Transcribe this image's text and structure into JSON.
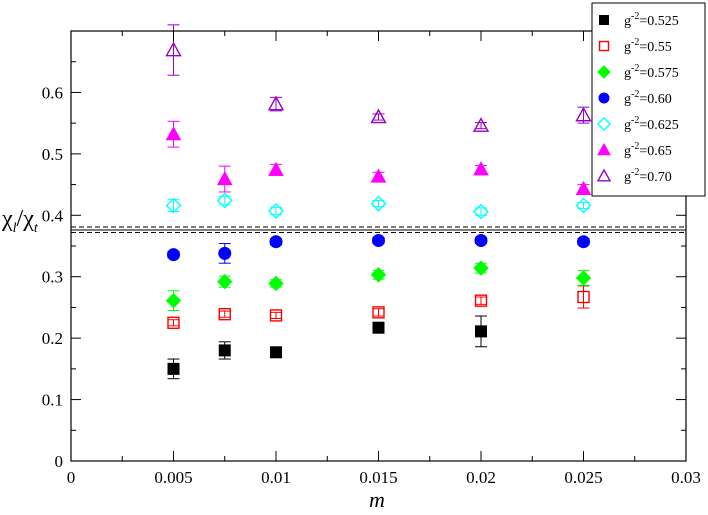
{
  "chart_data": {
    "type": "scatter",
    "xlabel": "m",
    "ylabel": {
      "main": "χ",
      "sub1": "l",
      "sep": "/",
      "main2": "χ",
      "sub2": "t"
    },
    "xlim": [
      0,
      0.03
    ],
    "ylim": [
      0,
      0.7
    ],
    "xticks": [
      0,
      0.005,
      0.01,
      0.015,
      0.02,
      0.025,
      0.03
    ],
    "xtick_labels": [
      "0",
      "0.005",
      "0.01",
      "0.015",
      "0.02",
      "0.025",
      "0.03"
    ],
    "yticks": [
      0,
      0.1,
      0.2,
      0.3,
      0.4,
      0.5,
      0.6
    ],
    "ytick_labels": [
      "0",
      "0.1",
      "0.2",
      "0.3",
      "0.4",
      "0.5",
      "0.6"
    ],
    "grid": false,
    "legend_position": "top-right",
    "reference_band": {
      "center": 0.376,
      "low": 0.372,
      "high": 0.381,
      "color": "#000000"
    },
    "series": [
      {
        "name": "g⁻²=0.525",
        "legend_prefix": "g",
        "legend_sup": "-2",
        "legend_value": "=0.525",
        "marker": "square",
        "filled": true,
        "color": "#000000",
        "points": [
          [
            0.005,
            0.15,
            0.016
          ],
          [
            0.0075,
            0.18,
            0.014
          ],
          [
            0.01,
            0.177,
            0.005
          ],
          [
            0.015,
            0.217,
            0.008
          ],
          [
            0.02,
            0.211,
            0.025
          ],
          [
            0.025,
            null,
            null
          ]
        ]
      },
      {
        "name": "g⁻²=0.55",
        "legend_prefix": "g",
        "legend_sup": "-2",
        "legend_value": "=0.55",
        "marker": "square",
        "filled": false,
        "color": "#ff0000",
        "points": [
          [
            0.005,
            0.225,
            0.005
          ],
          [
            0.0075,
            0.239,
            0.005
          ],
          [
            0.01,
            0.237,
            0.005
          ],
          [
            0.015,
            0.242,
            0.006
          ],
          [
            0.02,
            0.261,
            0.006
          ],
          [
            0.025,
            0.267,
            0.018
          ]
        ]
      },
      {
        "name": "g⁻²=0.575",
        "legend_prefix": "g",
        "legend_sup": "-2",
        "legend_value": "=0.575",
        "marker": "diamond",
        "filled": true,
        "color": "#00ff00",
        "points": [
          [
            0.005,
            0.261,
            0.016
          ],
          [
            0.0075,
            0.292,
            0.009
          ],
          [
            0.01,
            0.289,
            0.006
          ],
          [
            0.015,
            0.303,
            0.007
          ],
          [
            0.02,
            0.314,
            0.008
          ],
          [
            0.025,
            0.298,
            0.012
          ]
        ]
      },
      {
        "name": "g⁻²=0.60",
        "legend_prefix": "g",
        "legend_sup": "-2",
        "legend_value": "=0.60",
        "marker": "circle",
        "filled": true,
        "color": "#0000ff",
        "points": [
          [
            0.005,
            0.336,
            0.005
          ],
          [
            0.0075,
            0.338,
            0.016
          ],
          [
            0.01,
            0.357,
            0.005
          ],
          [
            0.015,
            0.359,
            0.005
          ],
          [
            0.02,
            0.359,
            0.005
          ],
          [
            0.025,
            0.357,
            0.005
          ]
        ]
      },
      {
        "name": "g⁻²=0.625",
        "legend_prefix": "g",
        "legend_sup": "-2",
        "legend_value": "=0.625",
        "marker": "diamond",
        "filled": false,
        "color": "#00ffff",
        "points": [
          [
            0.005,
            0.416,
            0.01
          ],
          [
            0.0075,
            0.424,
            0.007
          ],
          [
            0.01,
            0.407,
            0.006
          ],
          [
            0.015,
            0.419,
            0.005
          ],
          [
            0.02,
            0.406,
            0.006
          ],
          [
            0.025,
            0.416,
            0.005
          ]
        ]
      },
      {
        "name": "g⁻²=0.65",
        "legend_prefix": "g",
        "legend_sup": "-2",
        "legend_value": "=0.65",
        "marker": "triangle",
        "filled": true,
        "color": "#ff00ff",
        "points": [
          [
            0.005,
            0.532,
            0.021
          ],
          [
            0.0075,
            0.459,
            0.021
          ],
          [
            0.01,
            0.474,
            0.009
          ],
          [
            0.015,
            0.463,
            0.007
          ],
          [
            0.02,
            0.475,
            0.006
          ],
          [
            0.025,
            0.443,
            0.007
          ]
        ]
      },
      {
        "name": "g⁻²=0.70",
        "legend_prefix": "g",
        "legend_sup": "-2",
        "legend_value": "=0.70",
        "marker": "triangle",
        "filled": false,
        "color": "#9900cc",
        "points": [
          [
            0.005,
            0.669,
            0.041
          ],
          [
            0.0075,
            null,
            null
          ],
          [
            0.01,
            0.581,
            0.011
          ],
          [
            0.015,
            0.56,
            0.005
          ],
          [
            0.02,
            0.546,
            0.005
          ],
          [
            0.025,
            0.563,
            0.013
          ]
        ]
      }
    ]
  }
}
